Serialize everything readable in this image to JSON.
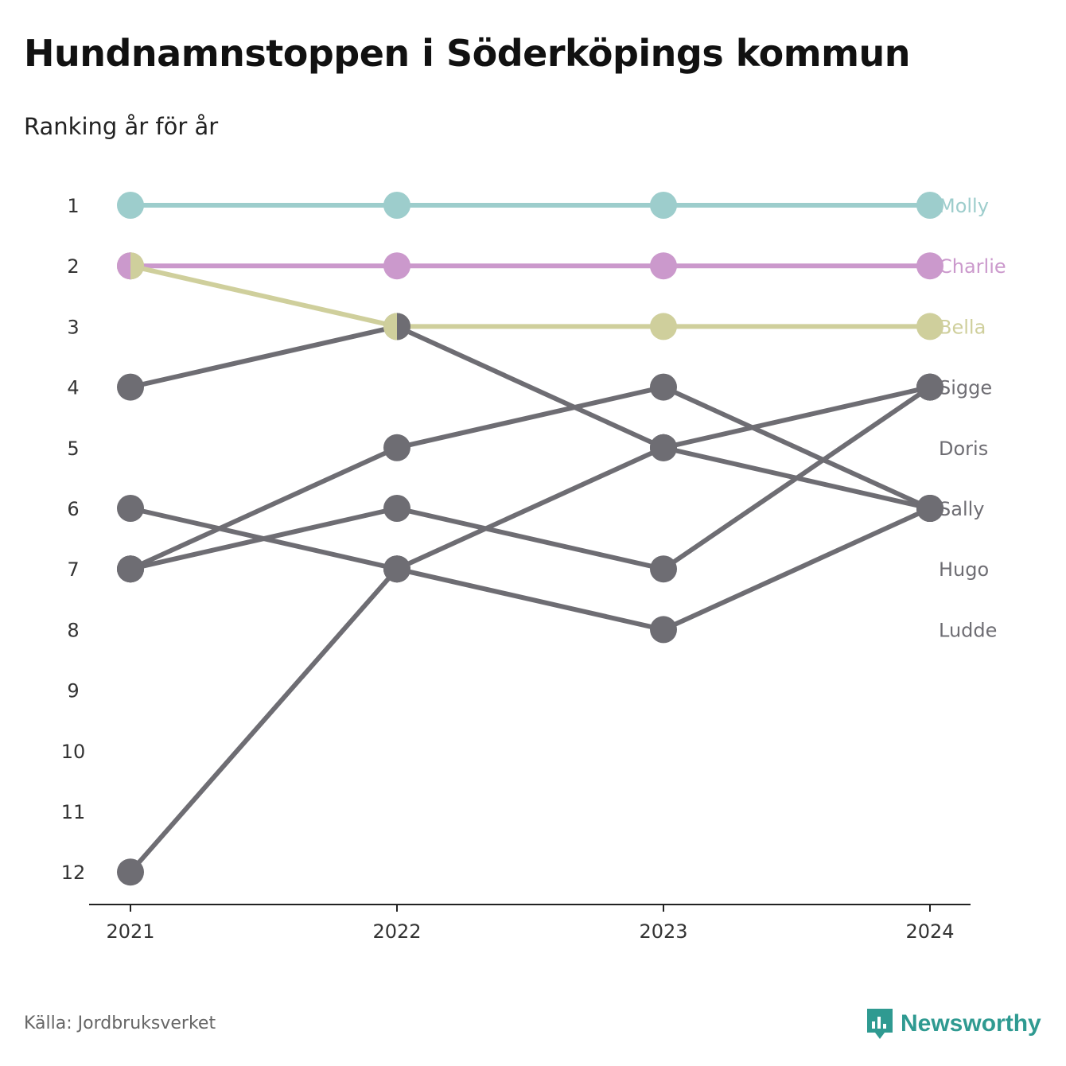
{
  "title": "Hundnamnstoppen i Söderköpings kommun",
  "subtitle": "Ranking år för år",
  "source": "Källa: Jordbruksverket",
  "brand": {
    "name": "Newsworthy",
    "icon": "newsworthy-logo-icon",
    "color": "#2f9a91"
  },
  "colors": {
    "Molly": "#9dcdcc",
    "Charlie": "#cb99cc",
    "Bella": "#cfcf9c",
    "other": "#6e6d73"
  },
  "chart_data": {
    "type": "line",
    "x": [
      "2021",
      "2022",
      "2023",
      "2024"
    ],
    "yticks": [
      "1",
      "2",
      "3",
      "4",
      "5",
      "6",
      "7",
      "8",
      "9",
      "10",
      "11",
      "12"
    ],
    "ylim": [
      1,
      12
    ],
    "y_inverted": true,
    "grid": false,
    "series": [
      {
        "name": "Molly",
        "values": [
          1,
          1,
          1,
          1
        ]
      },
      {
        "name": "Charlie",
        "values": [
          2,
          2,
          2,
          2
        ]
      },
      {
        "name": "Bella",
        "values": [
          2,
          3,
          3,
          3
        ]
      },
      {
        "name": "Sigge",
        "values": [
          12,
          7,
          5,
          4
        ]
      },
      {
        "name": "Doris",
        "values": [
          7,
          5,
          4,
          6
        ]
      },
      {
        "name": "Sally",
        "values": [
          4,
          3,
          5,
          6
        ]
      },
      {
        "name": "Hugo",
        "values": [
          6,
          7,
          8,
          6
        ]
      },
      {
        "name": "Ludde",
        "values": [
          7,
          6,
          7,
          4
        ]
      }
    ],
    "end_labels": [
      "Molly",
      "Charlie",
      "Bella",
      "Sigge",
      "Doris",
      "Sally",
      "Hugo",
      "Ludde"
    ]
  }
}
